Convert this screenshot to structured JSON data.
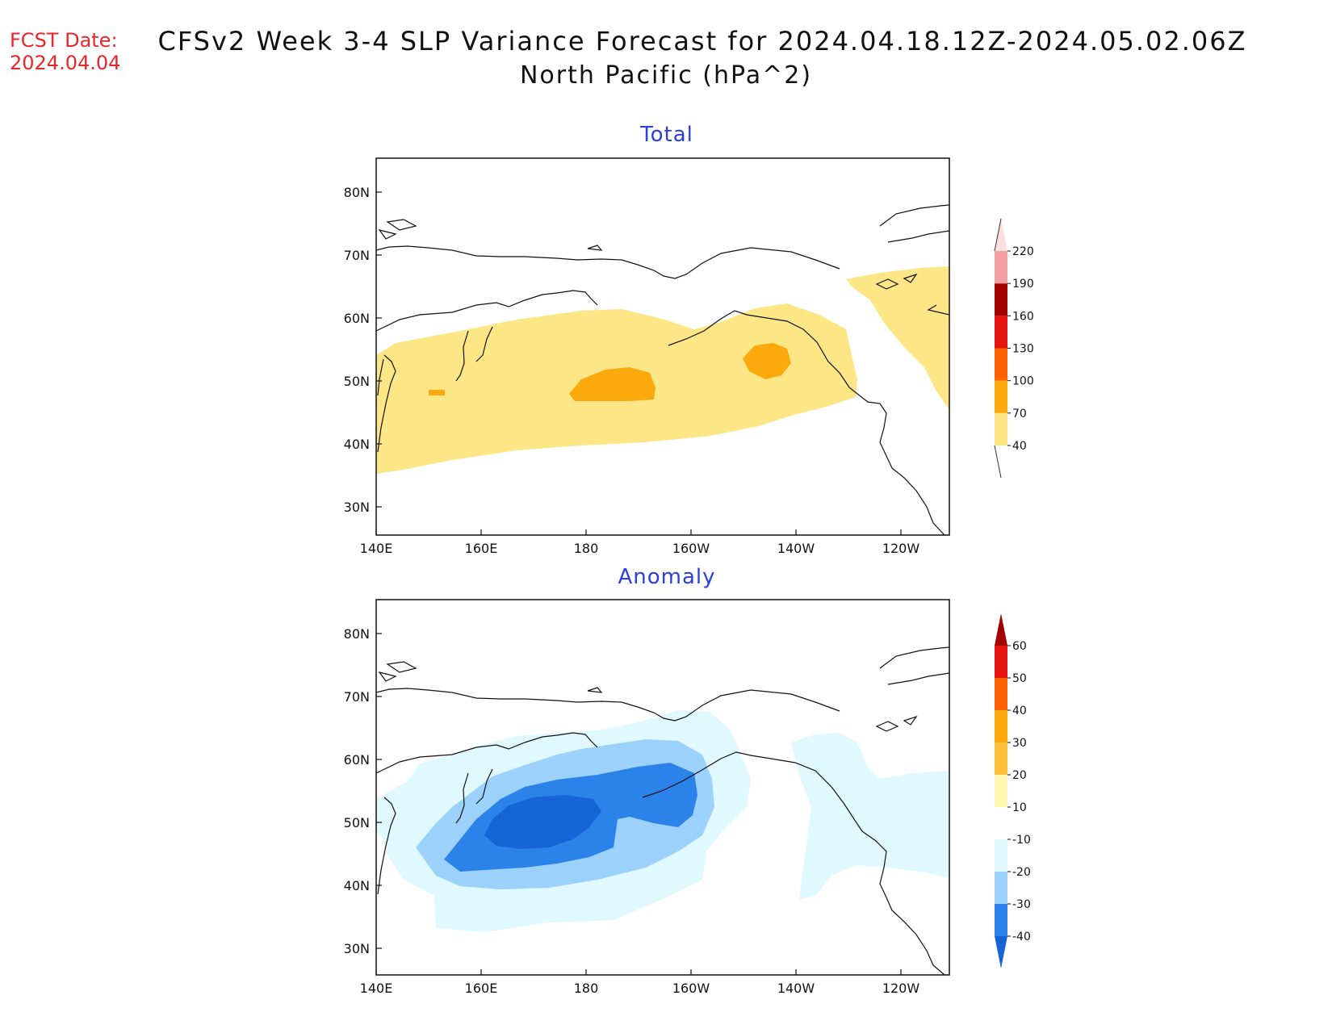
{
  "header": {
    "fcst_label": "FCST Date:",
    "fcst_date": "2024.04.04",
    "title": "CFSv2 Week 3-4 SLP Variance Forecast for 2024.04.18.12Z-2024.05.02.06Z",
    "subtitle": "North Pacific (hPa^2)"
  },
  "map_axes": {
    "lat_labels": [
      "80N",
      "70N",
      "60N",
      "50N",
      "40N",
      "30N"
    ],
    "lon_labels": [
      "140E",
      "160E",
      "180",
      "160W",
      "140W",
      "120W"
    ]
  },
  "panels": [
    {
      "title": "Total",
      "colorbar": {
        "labels": [
          "40",
          "70",
          "100",
          "130",
          "160",
          "190",
          "220"
        ],
        "colors": [
          "#fde685",
          "#fba90c",
          "#ff6101",
          "#e81612",
          "#a50000",
          "#f1a1a1",
          "#fde0dd"
        ]
      }
    },
    {
      "title": "Anomaly",
      "colorbar": {
        "labels": [
          "-40",
          "-30",
          "-20",
          "-10",
          "10",
          "20",
          "30",
          "40",
          "50",
          "60"
        ],
        "colors": [
          "#1565d6",
          "#2b83ea",
          "#9bd1fb",
          "#dff9ff",
          "#ffffff",
          "#fff8b3",
          "#fcc03a",
          "#fba90c",
          "#ff6101",
          "#e81612",
          "#a50000"
        ]
      }
    }
  ]
}
